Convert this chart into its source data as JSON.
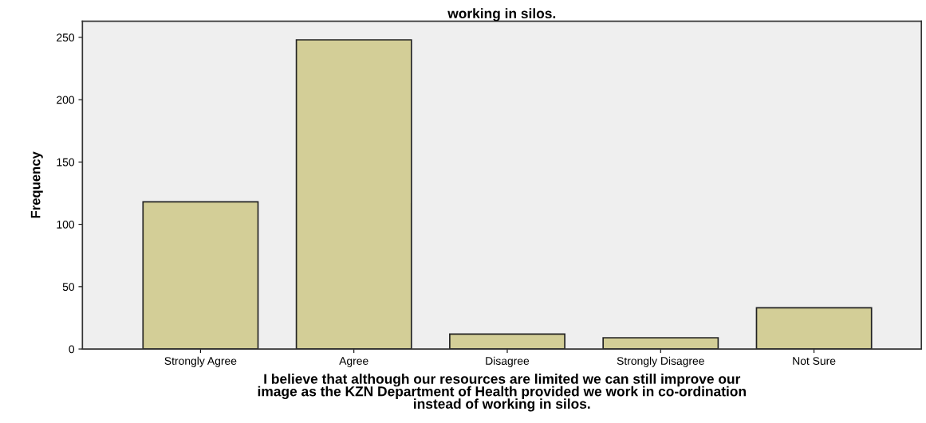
{
  "chart_data": {
    "type": "bar",
    "title": "working in silos.",
    "xlabel": "I believe that although our resources are limited we can still improve our\nimage as the KZN Department of Health provided we work in co-ordination\ninstead of working in silos.",
    "ylabel": "Frequency",
    "categories": [
      "Strongly Agree",
      "Agree",
      "Disagree",
      "Strongly Disagree",
      "Not Sure"
    ],
    "values": [
      118,
      248,
      12,
      9,
      33
    ],
    "color": "#d3ce97",
    "ylim": [
      0,
      263
    ],
    "yticks": [
      0,
      50,
      100,
      150,
      200,
      250
    ],
    "grid": false,
    "legend": false
  }
}
